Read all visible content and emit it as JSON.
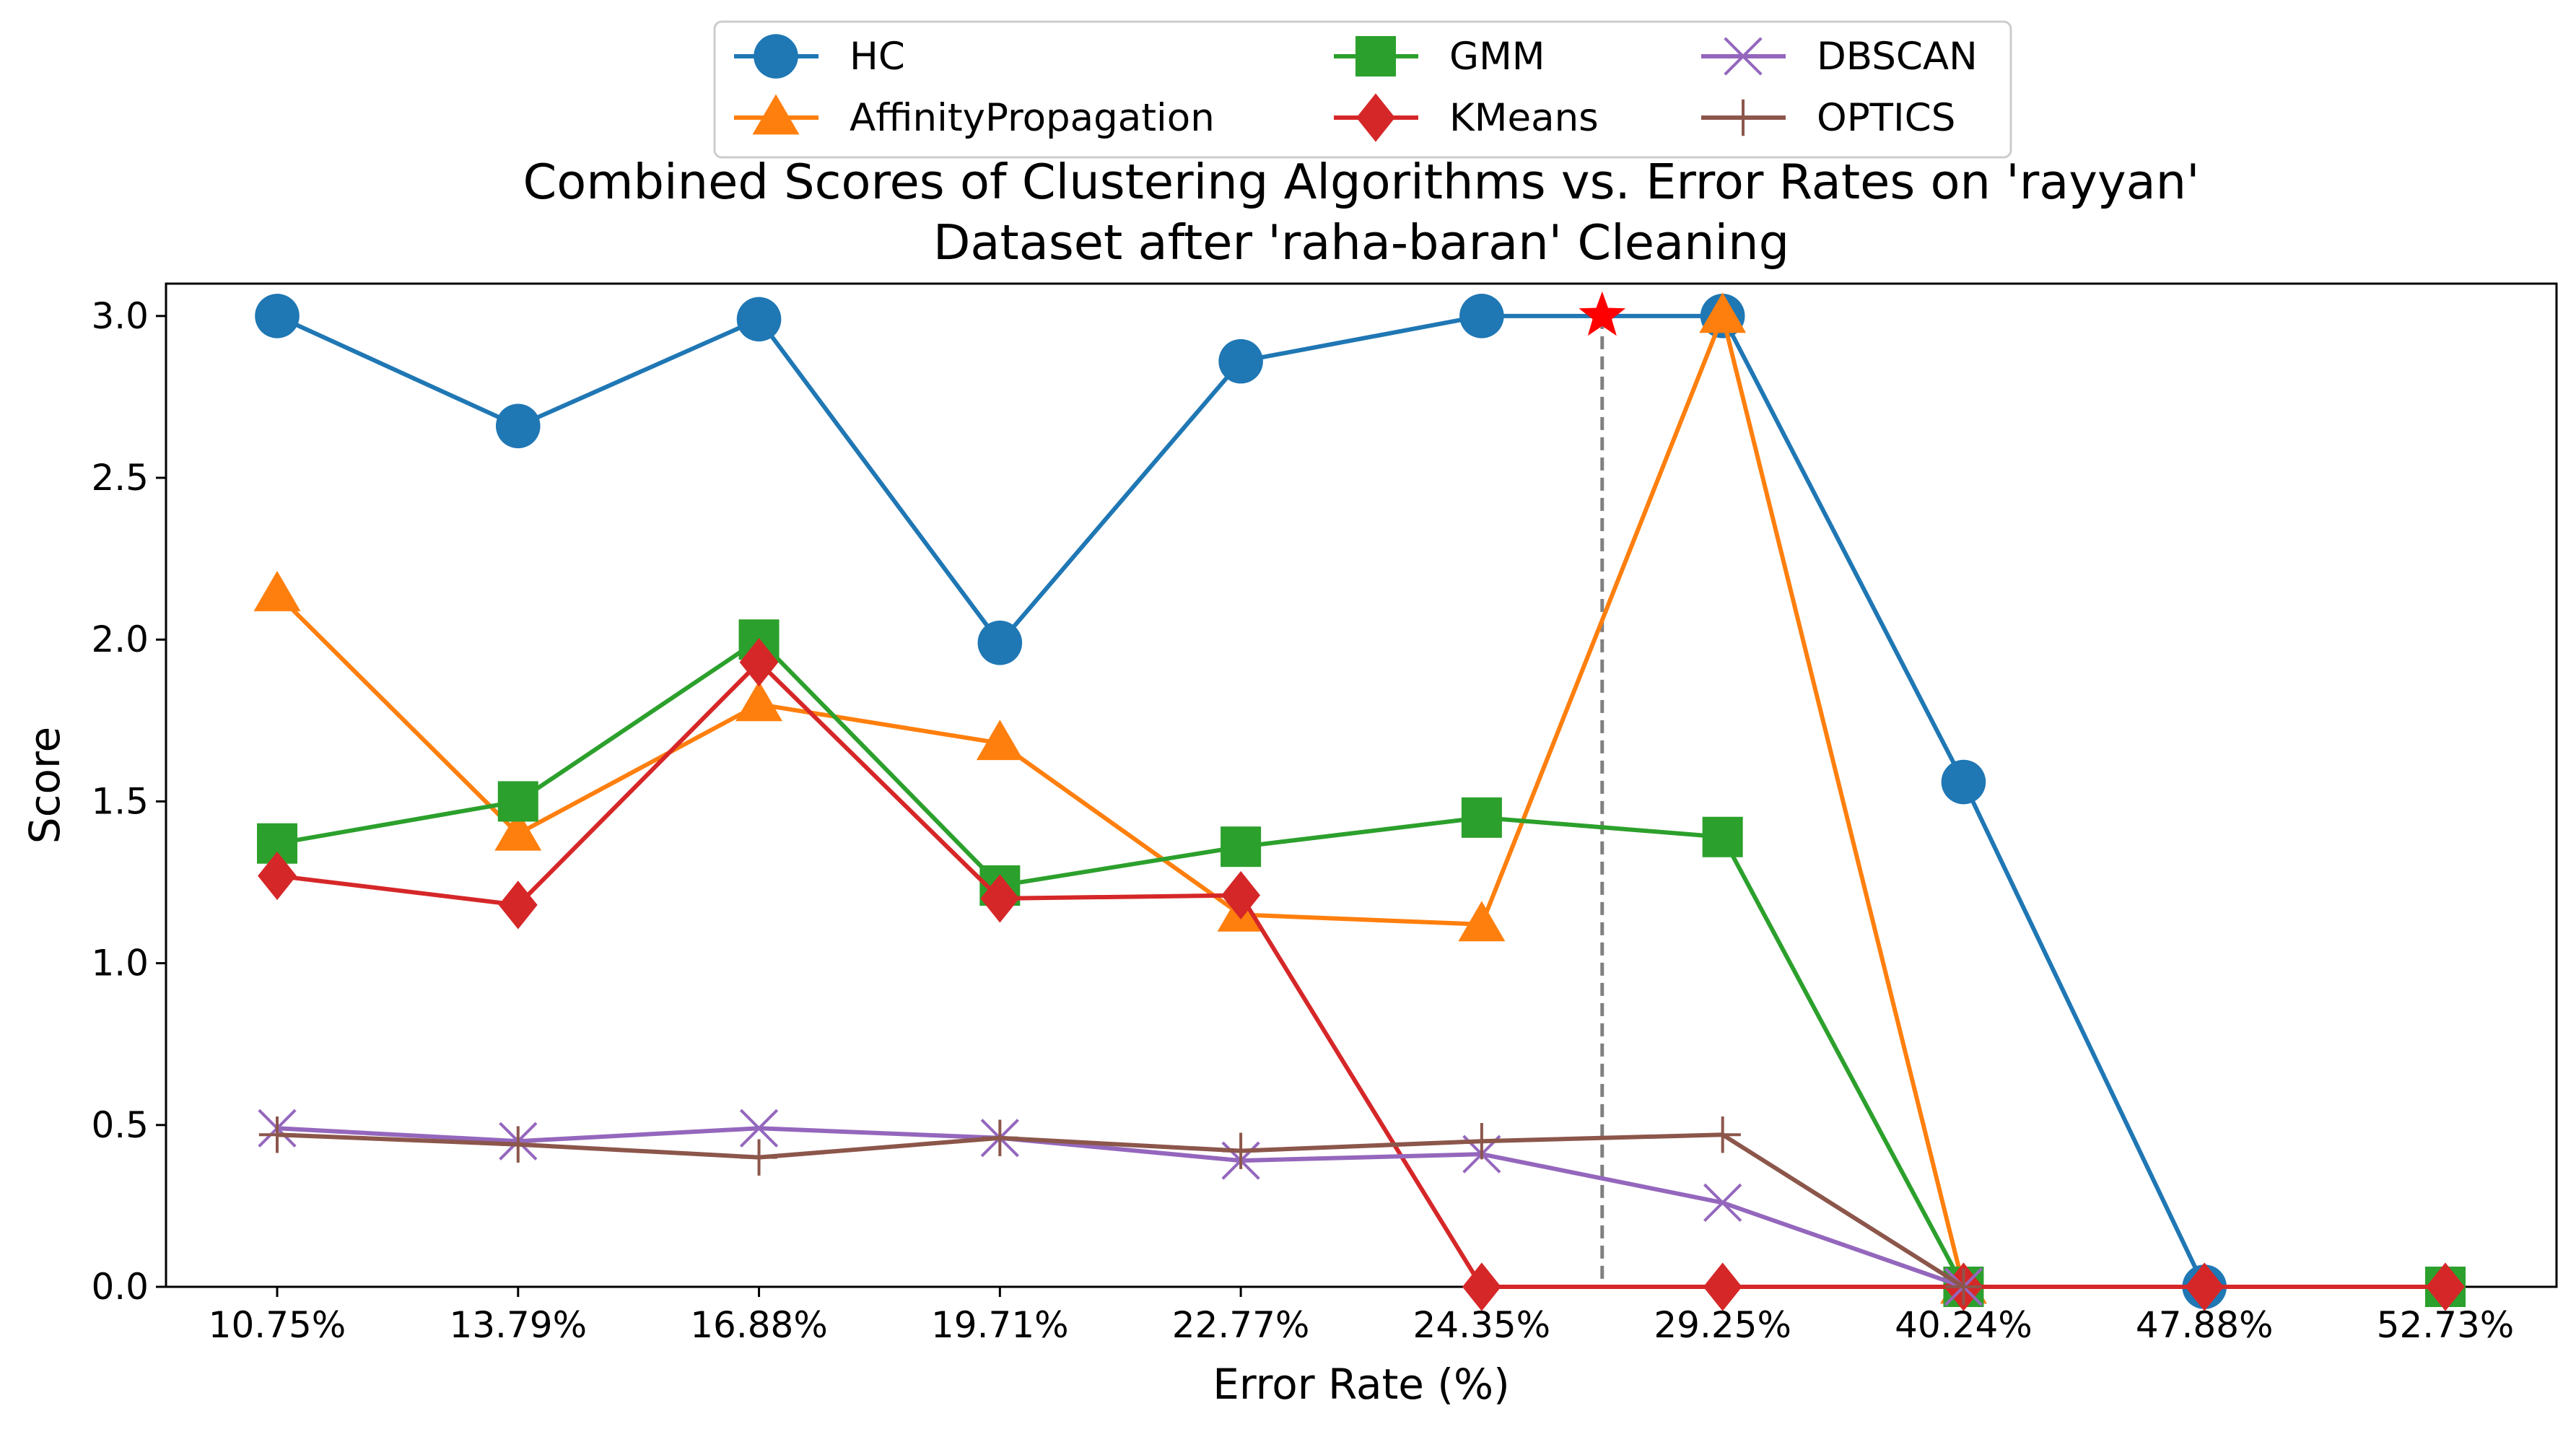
{
  "chart_data": {
    "type": "line",
    "title_lines": [
      "Combined Scores of Clustering Algorithms vs. Error Rates on 'rayyan'",
      "Dataset after 'raha-baran' Cleaning"
    ],
    "xlabel": "Error Rate (%)",
    "ylabel": "Score",
    "categories": [
      "10.75%",
      "13.79%",
      "16.88%",
      "19.71%",
      "22.77%",
      "24.35%",
      "29.25%",
      "40.24%",
      "47.88%",
      "52.73%"
    ],
    "ylim": [
      0,
      3.1
    ],
    "yticks": [
      "0.0",
      "0.5",
      "1.0",
      "1.5",
      "2.0",
      "2.5",
      "3.0"
    ],
    "grid": false,
    "legend_position": "top-center",
    "series": [
      {
        "name": "HC",
        "color": "#1f77b4",
        "marker": "circle",
        "values": [
          3.0,
          2.66,
          2.99,
          1.99,
          2.86,
          3.0,
          3.0,
          1.56,
          0.0,
          null
        ]
      },
      {
        "name": "AffinityPropagation",
        "color": "#ff7f0e",
        "marker": "triangle",
        "values": [
          2.14,
          1.4,
          1.8,
          1.68,
          1.15,
          1.12,
          3.0,
          0.0,
          null,
          null
        ]
      },
      {
        "name": "GMM",
        "color": "#2ca02c",
        "marker": "square",
        "values": [
          1.37,
          1.5,
          2.0,
          1.24,
          1.36,
          1.45,
          1.39,
          0.0,
          null,
          0.0
        ]
      },
      {
        "name": "KMeans",
        "color": "#d62728",
        "marker": "diamond",
        "values": [
          1.27,
          1.18,
          1.93,
          1.2,
          1.21,
          0.0,
          0.0,
          0.0,
          0.0,
          0.0
        ]
      },
      {
        "name": "DBSCAN",
        "color": "#9467bd",
        "marker": "x",
        "values": [
          0.49,
          0.45,
          0.49,
          0.46,
          0.39,
          0.41,
          0.26,
          0.0,
          null,
          null
        ]
      },
      {
        "name": "OPTICS",
        "color": "#8c564b",
        "marker": "plus",
        "values": [
          0.47,
          0.44,
          0.4,
          0.46,
          0.42,
          0.45,
          0.47,
          0.0,
          null,
          null
        ]
      }
    ],
    "annotations": {
      "best_marker": {
        "x_between": [
          "24.35%",
          "29.25%"
        ],
        "y": 3.0,
        "color": "#ff0000",
        "shape": "star"
      },
      "vertical_line": {
        "x_between": [
          "24.35%",
          "29.25%"
        ],
        "color": "#808080",
        "style": "dashed"
      }
    }
  }
}
